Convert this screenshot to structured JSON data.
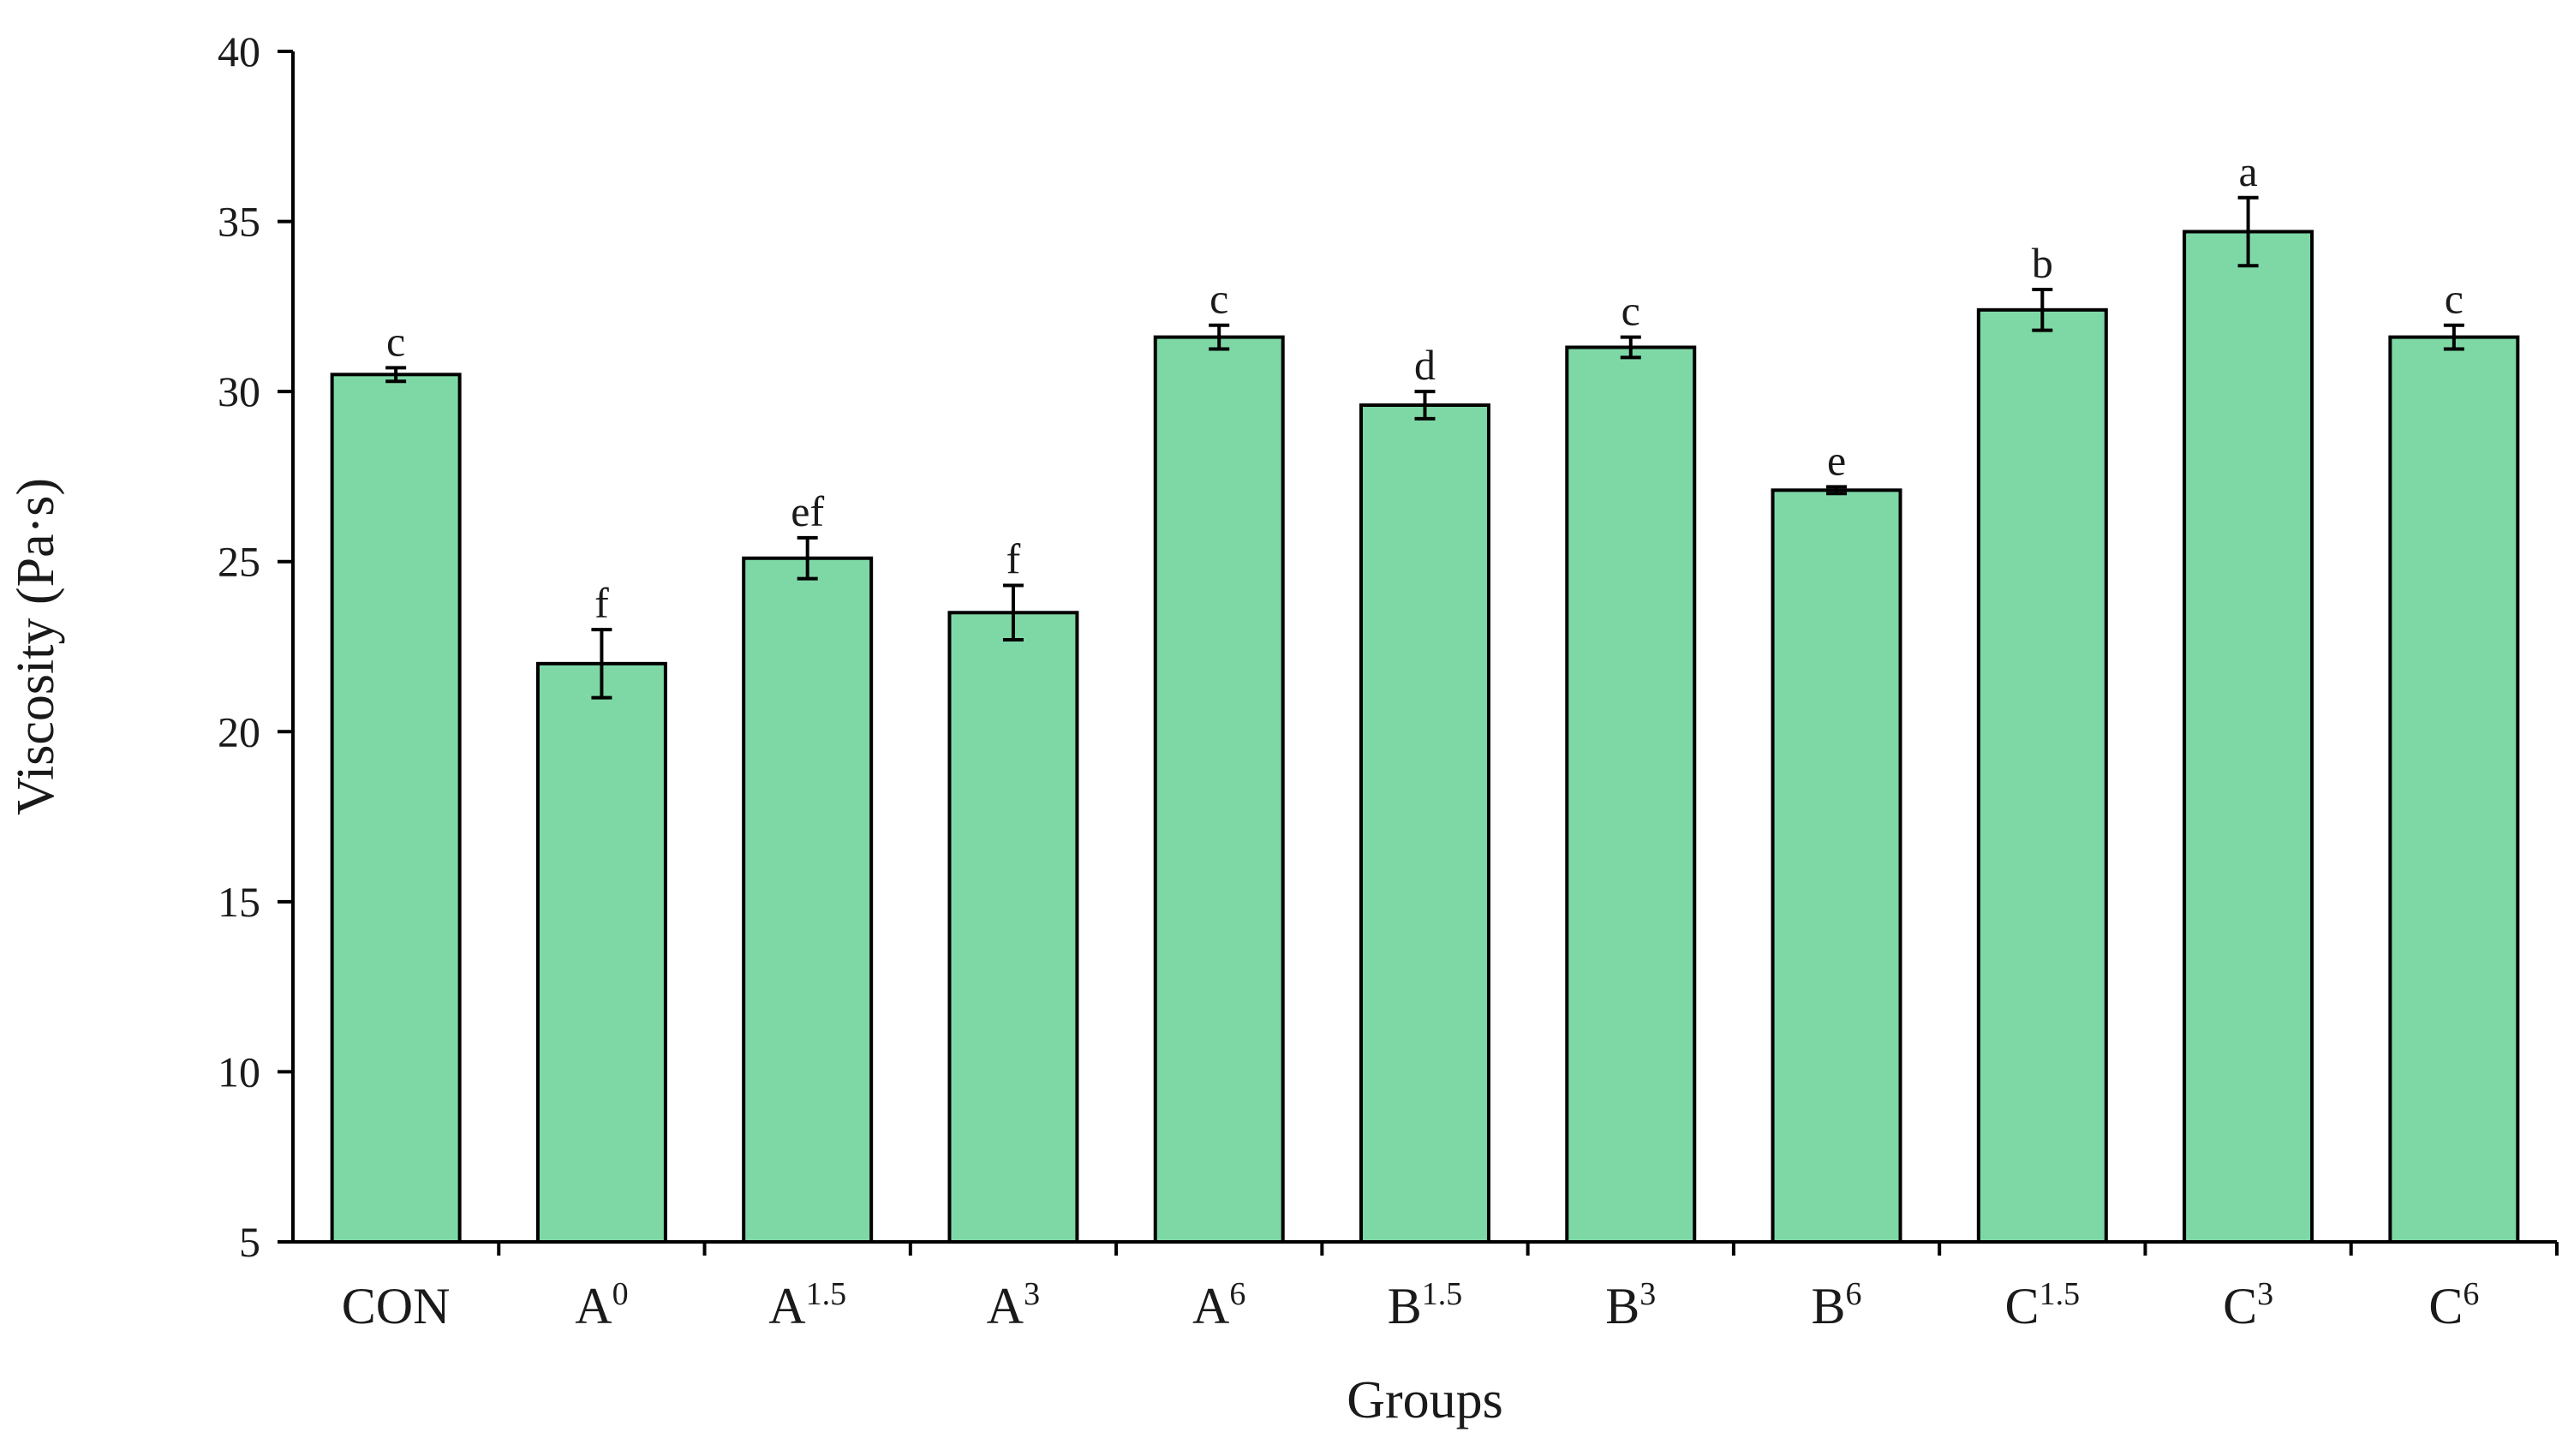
{
  "chart_data": {
    "type": "bar",
    "xlabel": "Groups",
    "ylabel": "Viscosity (Pa·s)",
    "ylim": [
      5,
      40
    ],
    "yticks": [
      5,
      10,
      15,
      20,
      25,
      30,
      35,
      40
    ],
    "grid": false,
    "legend": "none",
    "bar_color": "#7ed8a6",
    "categories": [
      {
        "base": "CON",
        "sup": ""
      },
      {
        "base": "A",
        "sup": "0"
      },
      {
        "base": "A",
        "sup": "1.5"
      },
      {
        "base": "A",
        "sup": "3"
      },
      {
        "base": "A",
        "sup": "6"
      },
      {
        "base": "B",
        "sup": "1.5"
      },
      {
        "base": "B",
        "sup": "3"
      },
      {
        "base": "B",
        "sup": "6"
      },
      {
        "base": "C",
        "sup": "1.5"
      },
      {
        "base": "C",
        "sup": "3"
      },
      {
        "base": "C",
        "sup": "6"
      }
    ],
    "values": [
      30.5,
      22.0,
      25.1,
      23.5,
      31.6,
      29.6,
      31.3,
      27.1,
      32.4,
      34.7,
      31.6
    ],
    "errors": [
      0.2,
      1.0,
      0.6,
      0.8,
      0.35,
      0.4,
      0.3,
      0.1,
      0.6,
      1.0,
      0.35
    ],
    "significance": [
      "c",
      "f",
      "ef",
      "f",
      "c",
      "d",
      "c",
      "e",
      "b",
      "a",
      "c"
    ]
  }
}
